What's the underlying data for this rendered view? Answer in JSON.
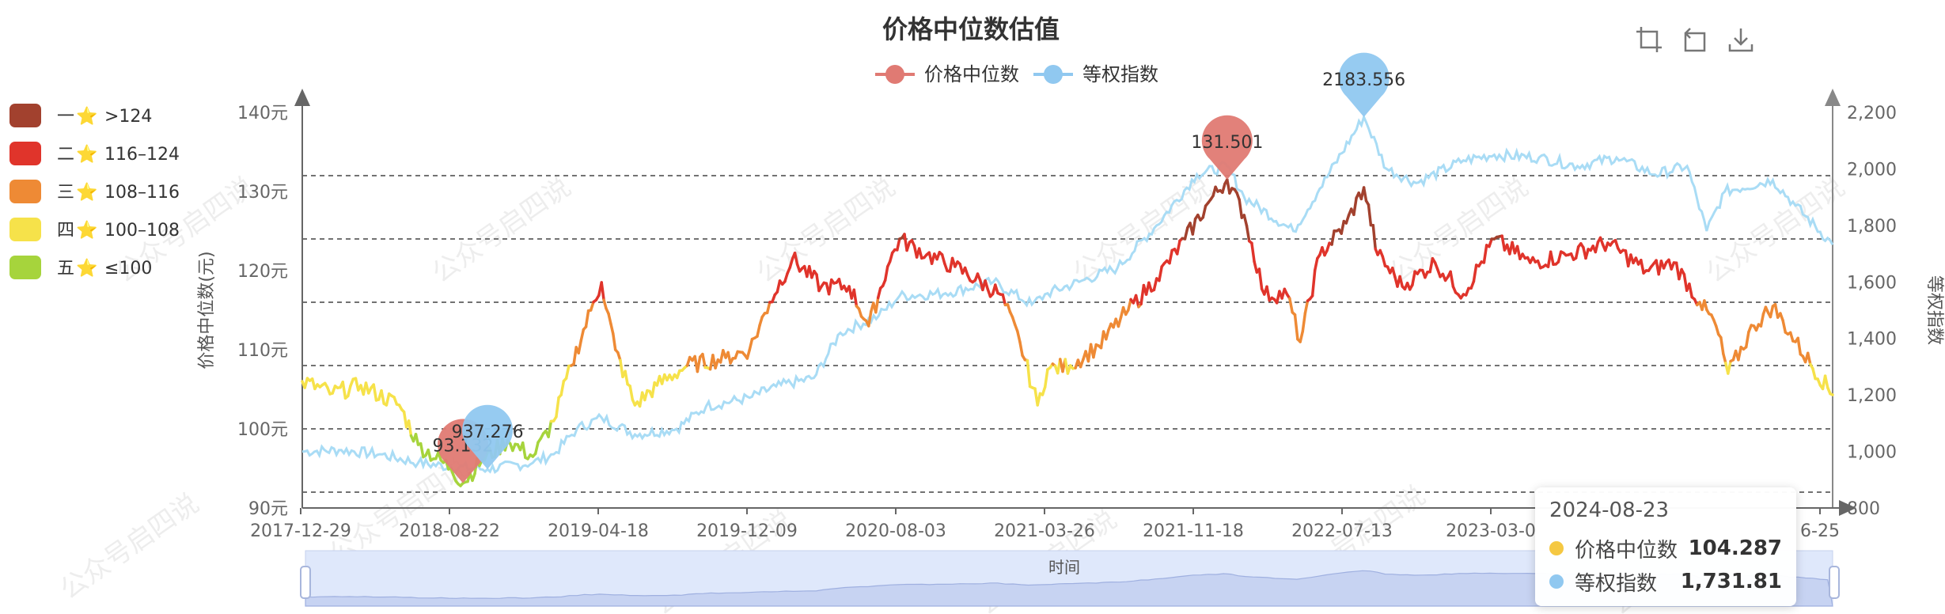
{
  "chart_data": {
    "type": "line",
    "title": "价格中位数估值",
    "legend": [
      {
        "name": "价格中位数",
        "color": "#e07a73"
      },
      {
        "name": "等权指数",
        "color": "#90c8f0"
      }
    ],
    "levels": [
      {
        "label": "一",
        "star": "⭐",
        "range": ">124",
        "color": "#a2412e"
      },
      {
        "label": "二",
        "star": "⭐",
        "range": "116–124",
        "color": "#e0342b"
      },
      {
        "label": "三",
        "star": "⭐",
        "range": "108–116",
        "color": "#ee8a35"
      },
      {
        "label": "四",
        "star": "⭐",
        "range": "100–108",
        "color": "#f6e24a"
      },
      {
        "label": "五",
        "star": "⭐",
        "range": "≤100",
        "color": "#a6d43c"
      }
    ],
    "left_axis": {
      "label": "价格中位数(元)",
      "ylim": [
        90,
        140
      ],
      "ticks": [
        "90元",
        "100元",
        "110元",
        "120元",
        "130元",
        "140元"
      ]
    },
    "right_axis": {
      "label": "等权指数",
      "ylim": [
        800,
        2200
      ],
      "ticks": [
        "800",
        "1,000",
        "1,200",
        "1,400",
        "1,600",
        "1,800",
        "2,000",
        "2,200"
      ]
    },
    "x_ticks": [
      "2017-12-29",
      "2018-08-22",
      "2019-04-18",
      "2019-12-09",
      "2020-08-03",
      "2021-03-26",
      "2021-11-18",
      "2022-07-13",
      "2023-03-0",
      "6-25"
    ],
    "x_axis_label": "时间",
    "threshold_lines": [
      92,
      100,
      108,
      116,
      124,
      132
    ],
    "median_price_keypoints": [
      [
        "2017-12-29",
        106
      ],
      [
        "2018-02-15",
        104.5
      ],
      [
        "2018-04-01",
        105.5
      ],
      [
        "2018-06-01",
        103
      ],
      [
        "2018-07-01",
        98
      ],
      [
        "2018-08-22",
        95
      ],
      [
        "2018-09-10",
        93.132
      ],
      [
        "2018-10-10",
        96
      ],
      [
        "2018-11-20",
        98.5
      ],
      [
        "2018-12-30",
        96.5
      ],
      [
        "2019-02-01",
        101
      ],
      [
        "2019-03-01",
        108
      ],
      [
        "2019-04-01",
        115
      ],
      [
        "2019-04-18",
        118.5
      ],
      [
        "2019-05-10",
        110
      ],
      [
        "2019-06-10",
        103
      ],
      [
        "2019-07-15",
        105.5
      ],
      [
        "2019-09-01",
        108
      ],
      [
        "2019-11-01",
        109
      ],
      [
        "2019-12-09",
        110
      ],
      [
        "2020-01-10",
        116
      ],
      [
        "2020-02-15",
        121.5
      ],
      [
        "2020-04-01",
        118
      ],
      [
        "2020-05-15",
        118
      ],
      [
        "2020-06-15",
        113
      ],
      [
        "2020-07-15",
        120.5
      ],
      [
        "2020-08-03",
        124
      ],
      [
        "2020-09-15",
        122
      ],
      [
        "2020-10-30",
        120.5
      ],
      [
        "2021-01-10",
        117
      ],
      [
        "2021-02-10",
        111
      ],
      [
        "2021-03-10",
        103
      ],
      [
        "2021-03-26",
        107.5
      ],
      [
        "2021-05-01",
        108
      ],
      [
        "2021-06-15",
        110.5
      ],
      [
        "2021-08-01",
        115
      ],
      [
        "2021-09-15",
        119
      ],
      [
        "2021-10-30",
        124
      ],
      [
        "2021-12-10",
        129
      ],
      [
        "2022-01-05",
        131.501
      ],
      [
        "2022-02-01",
        127
      ],
      [
        "2022-03-05",
        117
      ],
      [
        "2022-04-10",
        117
      ],
      [
        "2022-05-01",
        111
      ],
      [
        "2022-06-01",
        122
      ],
      [
        "2022-07-13",
        126
      ],
      [
        "2022-08-10",
        130.5
      ],
      [
        "2022-09-01",
        122
      ],
      [
        "2022-10-10",
        118
      ],
      [
        "2022-12-01",
        121
      ],
      [
        "2023-01-15",
        117
      ],
      [
        "2023-03-05",
        124
      ],
      [
        "2023-05-01",
        121
      ],
      [
        "2023-07-01",
        122
      ],
      [
        "2023-09-01",
        123.5
      ],
      [
        "2023-11-01",
        120
      ],
      [
        "2023-12-15",
        121
      ],
      [
        "2024-01-25",
        116
      ],
      [
        "2024-02-20",
        113
      ],
      [
        "2024-03-10",
        107
      ],
      [
        "2024-04-20",
        113
      ],
      [
        "2024-05-20",
        115.5
      ],
      [
        "2024-06-25",
        111
      ],
      [
        "2024-08-23",
        104.287
      ]
    ],
    "equal_weight_index_keypoints": [
      [
        "2017-12-29",
        1000
      ],
      [
        "2018-03-01",
        1005
      ],
      [
        "2018-05-01",
        990
      ],
      [
        "2018-07-01",
        960
      ],
      [
        "2018-08-22",
        945
      ],
      [
        "2018-10-19",
        937.276
      ],
      [
        "2018-12-30",
        960
      ],
      [
        "2019-02-01",
        990
      ],
      [
        "2019-03-10",
        1080
      ],
      [
        "2019-04-18",
        1120
      ],
      [
        "2019-06-10",
        1060
      ],
      [
        "2019-08-15",
        1080
      ],
      [
        "2019-10-01",
        1160
      ],
      [
        "2019-12-09",
        1190
      ],
      [
        "2020-01-20",
        1230
      ],
      [
        "2020-03-20",
        1260
      ],
      [
        "2020-05-01",
        1420
      ],
      [
        "2020-07-01",
        1480
      ],
      [
        "2020-08-03",
        1550
      ],
      [
        "2020-10-15",
        1560
      ],
      [
        "2020-12-30",
        1600
      ],
      [
        "2021-03-01",
        1520
      ],
      [
        "2021-03-26",
        1560
      ],
      [
        "2021-05-15",
        1600
      ],
      [
        "2021-07-15",
        1650
      ],
      [
        "2021-09-15",
        1800
      ],
      [
        "2021-11-18",
        1980
      ],
      [
        "2022-01-05",
        2010
      ],
      [
        "2022-02-01",
        1900
      ],
      [
        "2022-04-20",
        1780
      ],
      [
        "2022-06-01",
        1930
      ],
      [
        "2022-08-10",
        2183.556
      ],
      [
        "2022-09-15",
        2000
      ],
      [
        "2022-11-01",
        1950
      ],
      [
        "2023-01-15",
        2030
      ],
      [
        "2023-03-05",
        2050
      ],
      [
        "2023-05-15",
        2040
      ],
      [
        "2023-07-15",
        2010
      ],
      [
        "2023-09-15",
        2040
      ],
      [
        "2023-11-15",
        1980
      ],
      [
        "2024-01-05",
        2010
      ],
      [
        "2024-02-05",
        1780
      ],
      [
        "2024-03-05",
        1920
      ],
      [
        "2024-05-20",
        1960
      ],
      [
        "2024-06-25",
        1870
      ],
      [
        "2024-08-23",
        1731.81
      ]
    ],
    "markers": [
      {
        "series": "价格中位数",
        "label": "131.501",
        "date": "2022-01-05",
        "value": 131.501,
        "type": "max",
        "color": "#e07a73"
      },
      {
        "series": "价格中位数",
        "label": "93.132",
        "date": "2018-09-10",
        "value": 93.132,
        "type": "min",
        "color": "#e07a73"
      },
      {
        "series": "等权指数",
        "label": "2183.556",
        "date": "2022-08-10",
        "value": 2183.556,
        "type": "max",
        "color": "#90c8f0"
      },
      {
        "series": "等权指数",
        "label": "937.276",
        "date": "2018-10-19",
        "value": 937.276,
        "type": "min",
        "color": "#90c8f0"
      }
    ],
    "watermark": "公众号启四说",
    "tooltip": {
      "date": "2024-08-23",
      "rows": [
        {
          "name": "价格中位数",
          "value": "104.287",
          "color": "#f5c842"
        },
        {
          "name": "等权指数",
          "value": "1,731.81",
          "color": "#90c8f0"
        }
      ]
    }
  }
}
